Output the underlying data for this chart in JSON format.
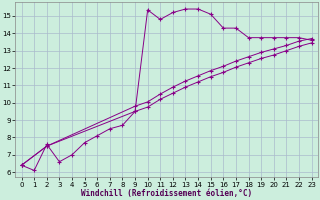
{
  "xlabel": "Windchill (Refroidissement éolien,°C)",
  "bg_color": "#cceedd",
  "grid_color": "#aabbcc",
  "line_color": "#880088",
  "marker": "+",
  "xlim": [
    -0.5,
    23.5
  ],
  "ylim": [
    5.7,
    15.8
  ],
  "xticks": [
    0,
    1,
    2,
    3,
    4,
    5,
    6,
    7,
    8,
    9,
    10,
    11,
    12,
    13,
    14,
    15,
    16,
    17,
    18,
    19,
    20,
    21,
    22,
    23
  ],
  "yticks": [
    6,
    7,
    8,
    9,
    10,
    11,
    12,
    13,
    14,
    15
  ],
  "series1_x": [
    0,
    1,
    2,
    3,
    4,
    5,
    6,
    7,
    8,
    9,
    10,
    11,
    12,
    13,
    14,
    15,
    16,
    17,
    18,
    19,
    20,
    21,
    22,
    23
  ],
  "series1_y": [
    6.4,
    6.1,
    7.6,
    6.6,
    7.0,
    7.7,
    8.1,
    8.5,
    8.7,
    9.5,
    15.35,
    14.8,
    15.2,
    15.4,
    15.4,
    15.1,
    14.3,
    14.3,
    13.75,
    13.75,
    13.75,
    13.75,
    13.75,
    13.6
  ],
  "series2_x": [
    0,
    2,
    9,
    10,
    11,
    12,
    13,
    14,
    15,
    16,
    17,
    18,
    19,
    20,
    21,
    22,
    23
  ],
  "series2_y": [
    6.4,
    7.5,
    9.8,
    10.05,
    10.5,
    10.9,
    11.25,
    11.55,
    11.85,
    12.1,
    12.4,
    12.65,
    12.9,
    13.1,
    13.3,
    13.55,
    13.7
  ],
  "series3_x": [
    0,
    2,
    9,
    10,
    11,
    12,
    13,
    14,
    15,
    16,
    17,
    18,
    19,
    20,
    21,
    22,
    23
  ],
  "series3_y": [
    6.4,
    7.5,
    9.5,
    9.75,
    10.2,
    10.55,
    10.9,
    11.2,
    11.5,
    11.75,
    12.05,
    12.3,
    12.55,
    12.75,
    13.0,
    13.25,
    13.45
  ]
}
